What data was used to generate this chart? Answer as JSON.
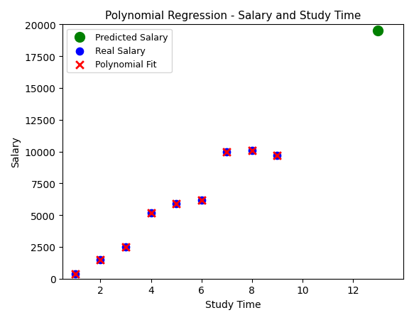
{
  "title": "Polynomial Regression - Salary and Study Time",
  "xlabel": "Study Time",
  "ylabel": "Salary",
  "real_salary_x": [
    1,
    2,
    3,
    4,
    5,
    6,
    7,
    8,
    9
  ],
  "real_salary_y": [
    400,
    1500,
    2500,
    5200,
    5900,
    6200,
    10000,
    10100,
    9700
  ],
  "poly_fit_x": [
    1,
    2,
    3,
    4,
    5,
    6,
    7,
    8,
    9
  ],
  "poly_fit_y": [
    400,
    1500,
    2500,
    5200,
    5900,
    6200,
    10000,
    10100,
    9700
  ],
  "predicted_x": [
    13
  ],
  "predicted_y": [
    19500
  ],
  "real_salary_color": "blue",
  "poly_fit_color": "red",
  "predicted_color": "green",
  "ylim": [
    0,
    20000
  ],
  "xlim": [
    0.5,
    14
  ],
  "real_salary_marker": "o",
  "poly_fit_marker": "x",
  "predicted_marker": "o",
  "real_salary_label": "Real Salary",
  "poly_fit_label": "Polynomial Fit",
  "predicted_label": "Predicted Salary",
  "real_salary_markersize": 55,
  "poly_fit_markersize": 60,
  "predicted_markersize": 100,
  "poly_fit_linewidths": 2,
  "background_color": "white",
  "title_fontsize": 11,
  "label_fontsize": 10,
  "legend_fontsize": 9,
  "xticks": [
    2,
    4,
    6,
    8,
    10,
    12
  ],
  "yticks": [
    0,
    2500,
    5000,
    7500,
    10000,
    12500,
    15000,
    17500,
    20000
  ]
}
